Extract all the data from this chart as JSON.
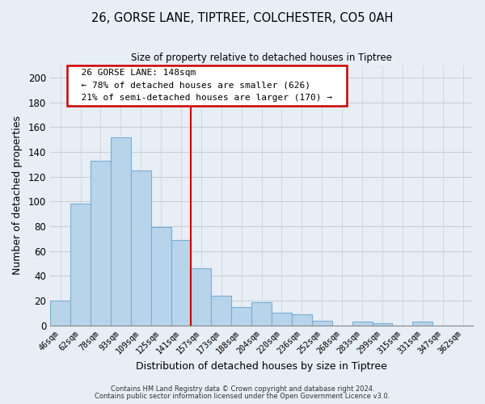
{
  "title_line1": "26, GORSE LANE, TIPTREE, COLCHESTER, CO5 0AH",
  "title_line2": "Size of property relative to detached houses in Tiptree",
  "xlabel": "Distribution of detached houses by size in Tiptree",
  "ylabel": "Number of detached properties",
  "bar_labels": [
    "46sqm",
    "62sqm",
    "78sqm",
    "93sqm",
    "109sqm",
    "125sqm",
    "141sqm",
    "157sqm",
    "173sqm",
    "188sqm",
    "204sqm",
    "220sqm",
    "236sqm",
    "252sqm",
    "268sqm",
    "283sqm",
    "299sqm",
    "315sqm",
    "331sqm",
    "347sqm",
    "362sqm"
  ],
  "bar_values": [
    20,
    98,
    133,
    152,
    125,
    79,
    69,
    46,
    24,
    15,
    19,
    10,
    9,
    4,
    0,
    3,
    2,
    0,
    3,
    0,
    0
  ],
  "bar_color": "#b8d4ea",
  "bar_edge_color": "#7aaed4",
  "vline_x": 6.5,
  "vline_color": "#cc0000",
  "ylim": [
    0,
    210
  ],
  "yticks": [
    0,
    20,
    40,
    60,
    80,
    100,
    120,
    140,
    160,
    180,
    200
  ],
  "annotation_title": "26 GORSE LANE: 148sqm",
  "annotation_line1": "← 78% of detached houses are smaller (626)",
  "annotation_line2": "21% of semi-detached houses are larger (170) →",
  "annotation_box_color": "#ffffff",
  "annotation_box_edge": "#cc0000",
  "footer_line1": "Contains HM Land Registry data © Crown copyright and database right 2024.",
  "footer_line2": "Contains public sector information licensed under the Open Government Licence v3.0.",
  "background_color": "#e8eef5",
  "plot_bg_color": "#e8eef5",
  "grid_color": "#c5d0de"
}
